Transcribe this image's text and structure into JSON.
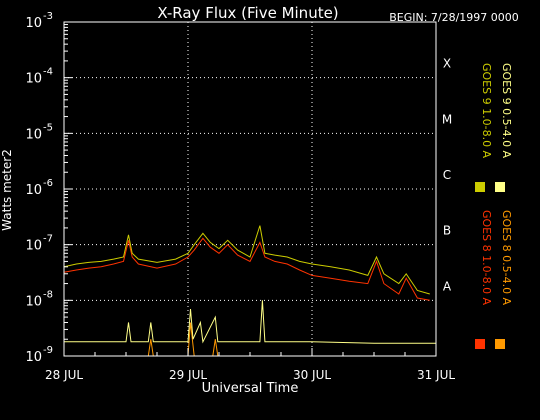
{
  "chart_data": {
    "type": "line",
    "title": "X-Ray Flux (Five Minute)",
    "begin_label": "BEGIN: 7/28/1997 0000",
    "xlabel": "Universal Time",
    "ylabel": "Watts meter2",
    "yscale": "log",
    "ylim": [
      1e-09,
      0.001
    ],
    "xlim_days": [
      0,
      3
    ],
    "grid": true,
    "y_ticks": [
      {
        "base": "10",
        "exp": "-9",
        "value": 1e-09
      },
      {
        "base": "10",
        "exp": "-8",
        "value": 1e-08
      },
      {
        "base": "10",
        "exp": "-7",
        "value": 1e-07
      },
      {
        "base": "10",
        "exp": "-6",
        "value": 1e-06
      },
      {
        "base": "10",
        "exp": "-5",
        "value": 1e-05
      },
      {
        "base": "10",
        "exp": "-4",
        "value": 0.0001
      },
      {
        "base": "10",
        "exp": "-3",
        "value": 0.001
      }
    ],
    "x_ticks": [
      {
        "label": "28 JUL",
        "day": 0
      },
      {
        "label": "29 JUL",
        "day": 1
      },
      {
        "label": "30 JUL",
        "day": 2
      },
      {
        "label": "31 JUL",
        "day": 3
      }
    ],
    "flare_classes": [
      {
        "label": "A",
        "value": 1e-08
      },
      {
        "label": "B",
        "value": 1e-07
      },
      {
        "label": "C",
        "value": 1e-06
      },
      {
        "label": "M",
        "value": 1e-05
      },
      {
        "label": "X",
        "value": 0.0001
      }
    ],
    "series": [
      {
        "name": "GOES 8 1.0-8.0 A",
        "color": "#ff3300",
        "points": [
          [
            0,
            3.2e-08
          ],
          [
            0.1,
            3.5e-08
          ],
          [
            0.2,
            3.8e-08
          ],
          [
            0.3,
            4e-08
          ],
          [
            0.4,
            4.5e-08
          ],
          [
            0.48,
            5e-08
          ],
          [
            0.52,
            1.2e-07
          ],
          [
            0.55,
            6e-08
          ],
          [
            0.6,
            4.5e-08
          ],
          [
            0.75,
            3.8e-08
          ],
          [
            0.9,
            4.5e-08
          ],
          [
            1.0,
            6e-08
          ],
          [
            1.05,
            8e-08
          ],
          [
            1.12,
            1.3e-07
          ],
          [
            1.18,
            9e-08
          ],
          [
            1.25,
            7e-08
          ],
          [
            1.32,
            1e-07
          ],
          [
            1.4,
            6.5e-08
          ],
          [
            1.5,
            5e-08
          ],
          [
            1.58,
            1.1e-07
          ],
          [
            1.62,
            6e-08
          ],
          [
            1.7,
            5e-08
          ],
          [
            1.8,
            4.5e-08
          ],
          [
            1.9,
            3.5e-08
          ],
          [
            2.0,
            2.8e-08
          ],
          [
            2.15,
            2.5e-08
          ],
          [
            2.3,
            2.2e-08
          ],
          [
            2.45,
            2e-08
          ],
          [
            2.52,
            5e-08
          ],
          [
            2.58,
            2e-08
          ],
          [
            2.7,
            1.3e-08
          ],
          [
            2.76,
            2.5e-08
          ],
          [
            2.85,
            1.1e-08
          ],
          [
            2.95,
            1e-08
          ]
        ]
      },
      {
        "name": "GOES 8 0.5-4.0 A",
        "color": "#ff9900",
        "points": [
          [
            0,
            1e-09
          ],
          [
            0.68,
            1e-09
          ],
          [
            0.7,
            2e-09
          ],
          [
            0.72,
            1e-09
          ],
          [
            1.0,
            1e-09
          ],
          [
            1.02,
            4e-09
          ],
          [
            1.05,
            1e-09
          ],
          [
            1.2,
            1e-09
          ],
          [
            1.22,
            2e-09
          ],
          [
            1.24,
            1e-09
          ],
          [
            1.6,
            1e-09
          ]
        ]
      },
      {
        "name": "GOES 9 1.0-8.0 A",
        "color": "#cccc00",
        "points": [
          [
            0,
            4e-08
          ],
          [
            0.1,
            4.5e-08
          ],
          [
            0.2,
            4.8e-08
          ],
          [
            0.3,
            5e-08
          ],
          [
            0.4,
            5.5e-08
          ],
          [
            0.48,
            6e-08
          ],
          [
            0.52,
            1.5e-07
          ],
          [
            0.55,
            7e-08
          ],
          [
            0.6,
            5.5e-08
          ],
          [
            0.75,
            4.8e-08
          ],
          [
            0.9,
            5.5e-08
          ],
          [
            1.0,
            7e-08
          ],
          [
            1.05,
            1e-07
          ],
          [
            1.12,
            1.6e-07
          ],
          [
            1.18,
            1.1e-07
          ],
          [
            1.25,
            8.5e-08
          ],
          [
            1.32,
            1.2e-07
          ],
          [
            1.4,
            8e-08
          ],
          [
            1.5,
            6e-08
          ],
          [
            1.58,
            2.2e-07
          ],
          [
            1.62,
            7e-08
          ],
          [
            1.7,
            6.5e-08
          ],
          [
            1.8,
            6e-08
          ],
          [
            1.9,
            5e-08
          ],
          [
            2.0,
            4.5e-08
          ],
          [
            2.15,
            4e-08
          ],
          [
            2.3,
            3.5e-08
          ],
          [
            2.45,
            2.8e-08
          ],
          [
            2.52,
            6e-08
          ],
          [
            2.58,
            3e-08
          ],
          [
            2.7,
            2e-08
          ],
          [
            2.76,
            3e-08
          ],
          [
            2.85,
            1.5e-08
          ],
          [
            2.95,
            1.3e-08
          ]
        ]
      },
      {
        "name": "GOES 9 0.5-4.0 A",
        "color": "#ffff88",
        "points": [
          [
            0,
            1.8e-09
          ],
          [
            0.5,
            1.8e-09
          ],
          [
            0.52,
            4e-09
          ],
          [
            0.54,
            1.8e-09
          ],
          [
            0.68,
            1.8e-09
          ],
          [
            0.7,
            4e-09
          ],
          [
            0.72,
            1.8e-09
          ],
          [
            1.0,
            1.8e-09
          ],
          [
            1.02,
            7e-09
          ],
          [
            1.04,
            2e-09
          ],
          [
            1.1,
            4e-09
          ],
          [
            1.12,
            1.8e-09
          ],
          [
            1.22,
            5e-09
          ],
          [
            1.24,
            1.8e-09
          ],
          [
            1.58,
            1.8e-09
          ],
          [
            1.6,
            1e-08
          ],
          [
            1.62,
            1.8e-09
          ],
          [
            2.0,
            1.8e-09
          ],
          [
            2.5,
            1.7e-09
          ],
          [
            3.0,
            1.7e-09
          ]
        ]
      }
    ]
  }
}
